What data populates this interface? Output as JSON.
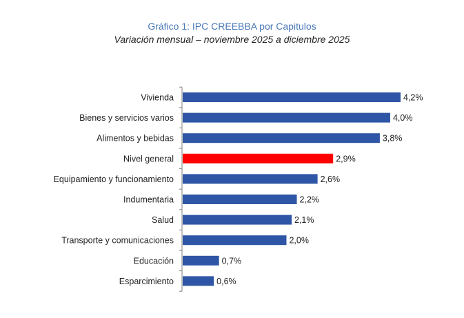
{
  "chart_data": {
    "type": "bar",
    "orientation": "horizontal",
    "title": "Gráfico 1: IPC CREEBBA por Capitulos",
    "subtitle": "Variación mensual – noviembre 2025 a diciembre 2025",
    "categories": [
      "Vivienda",
      "Bienes y servicios varios",
      "Alimentos y bebidas",
      "Nivel general",
      "Equipamiento y funcionamiento",
      "Indumentaria",
      "Salud",
      "Transporte y comunicaciones",
      "Educación",
      "Esparcimiento"
    ],
    "values": [
      4.2,
      4.0,
      3.8,
      2.9,
      2.6,
      2.2,
      2.1,
      2.0,
      0.7,
      0.6
    ],
    "value_labels": [
      "4,2%",
      "4,0%",
      "3,8%",
      "2,9%",
      "2,6%",
      "2,2%",
      "2,1%",
      "2,0%",
      "0,7%",
      "0,6%"
    ],
    "highlight_category": "Nivel general",
    "xlim": [
      0,
      4.2
    ],
    "xlabel": "",
    "ylabel": "",
    "colors": {
      "bar": "#2f56a6",
      "highlight": "#ff0000",
      "axis": "#7f7f7f"
    }
  }
}
